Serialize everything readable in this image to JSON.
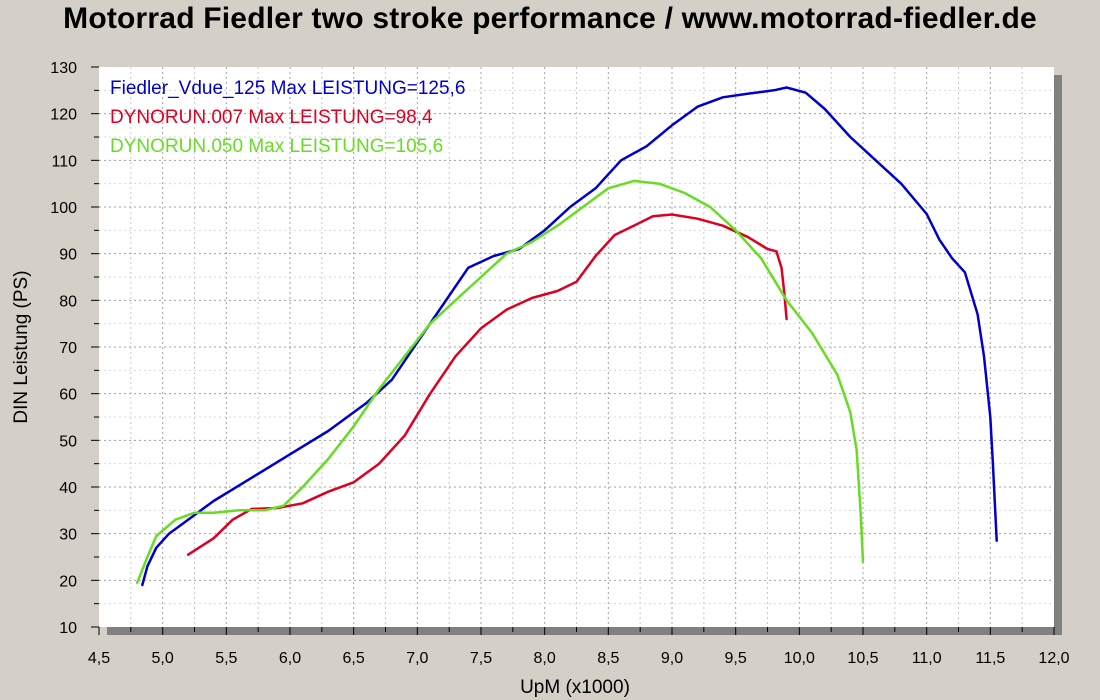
{
  "chart_data": {
    "type": "line",
    "title": "Motorrad Fiedler two stroke performance / www.motorrad-fiedler.de",
    "xlabel": "UpM (x1000)",
    "ylabel": "DIN Leistung (PS)",
    "xlim": [
      4.5,
      12.0
    ],
    "ylim": [
      10,
      130
    ],
    "x_ticks": [
      4.5,
      5.0,
      5.5,
      6.0,
      6.5,
      7.0,
      7.5,
      8.0,
      8.5,
      9.0,
      9.5,
      10.0,
      10.5,
      11.0,
      11.5,
      12.0
    ],
    "x_tick_labels": [
      "4,5",
      "5,0",
      "5,5",
      "6,0",
      "6,5",
      "7,0",
      "7,5",
      "8,0",
      "8,5",
      "9,0",
      "9,5",
      "10,0",
      "10,5",
      "11,0",
      "11,5",
      "12,0"
    ],
    "y_ticks": [
      10,
      20,
      30,
      40,
      50,
      60,
      70,
      80,
      90,
      100,
      110,
      120,
      130
    ],
    "y_tick_labels": [
      "10",
      "20",
      "30",
      "40",
      "50",
      "60",
      "70",
      "80",
      "90",
      "100",
      "110",
      "120",
      "130"
    ],
    "grid": true,
    "legend_placement": "top-left",
    "colors": {
      "background": "#d4d0c8",
      "plot_area": "#ffffff",
      "grid": "#a0a0a0",
      "shadow": "#808080"
    },
    "series": [
      {
        "name": "Fiedler_Vdue_125",
        "legend": "Fiedler_Vdue_125  Max LEISTUNG=125,6",
        "color": "#0000cc",
        "points": [
          [
            4.84,
            19
          ],
          [
            4.88,
            23
          ],
          [
            4.95,
            27
          ],
          [
            5.05,
            30
          ],
          [
            5.2,
            33
          ],
          [
            5.4,
            37
          ],
          [
            5.7,
            42
          ],
          [
            6.0,
            47
          ],
          [
            6.3,
            52
          ],
          [
            6.6,
            58
          ],
          [
            6.8,
            63
          ],
          [
            7.0,
            71
          ],
          [
            7.2,
            79
          ],
          [
            7.4,
            87
          ],
          [
            7.6,
            89.5
          ],
          [
            7.8,
            91
          ],
          [
            8.0,
            95
          ],
          [
            8.2,
            100
          ],
          [
            8.4,
            104
          ],
          [
            8.5,
            107
          ],
          [
            8.6,
            110
          ],
          [
            8.8,
            113
          ],
          [
            9.0,
            117.5
          ],
          [
            9.2,
            121.5
          ],
          [
            9.4,
            123.5
          ],
          [
            9.6,
            124.3
          ],
          [
            9.8,
            125
          ],
          [
            9.9,
            125.6
          ],
          [
            10.05,
            124.5
          ],
          [
            10.2,
            121
          ],
          [
            10.4,
            115
          ],
          [
            10.6,
            110
          ],
          [
            10.8,
            105
          ],
          [
            11.0,
            98.5
          ],
          [
            11.1,
            93
          ],
          [
            11.2,
            89
          ],
          [
            11.3,
            86
          ],
          [
            11.4,
            77
          ],
          [
            11.45,
            68
          ],
          [
            11.5,
            55
          ],
          [
            11.52,
            45
          ],
          [
            11.55,
            28.5
          ]
        ]
      },
      {
        "name": "DYNORUN.007",
        "legend": "DYNORUN.007  Max LEISTUNG=98,4",
        "color": "#dd0022",
        "points": [
          [
            5.2,
            25.5
          ],
          [
            5.4,
            29
          ],
          [
            5.55,
            33
          ],
          [
            5.7,
            35.3
          ],
          [
            5.9,
            35.5
          ],
          [
            6.1,
            36.5
          ],
          [
            6.3,
            39
          ],
          [
            6.5,
            41
          ],
          [
            6.7,
            45
          ],
          [
            6.9,
            51
          ],
          [
            7.1,
            60
          ],
          [
            7.3,
            68
          ],
          [
            7.5,
            74
          ],
          [
            7.7,
            78
          ],
          [
            7.9,
            80.5
          ],
          [
            8.1,
            82
          ],
          [
            8.25,
            84
          ],
          [
            8.4,
            89.5
          ],
          [
            8.55,
            94
          ],
          [
            8.7,
            96
          ],
          [
            8.85,
            98
          ],
          [
            9.0,
            98.4
          ],
          [
            9.2,
            97.5
          ],
          [
            9.4,
            96
          ],
          [
            9.6,
            93.5
          ],
          [
            9.75,
            91
          ],
          [
            9.82,
            90.5
          ],
          [
            9.86,
            87
          ],
          [
            9.88,
            82
          ],
          [
            9.9,
            76
          ]
        ]
      },
      {
        "name": "DYNORUN.050",
        "legend": "DYNORUN.050  Max LEISTUNG=105,6",
        "color": "#66dd22",
        "points": [
          [
            4.8,
            19.5
          ],
          [
            4.88,
            25
          ],
          [
            4.95,
            29.5
          ],
          [
            5.1,
            33
          ],
          [
            5.25,
            34.5
          ],
          [
            5.4,
            34.5
          ],
          [
            5.6,
            35
          ],
          [
            5.8,
            35
          ],
          [
            5.95,
            36
          ],
          [
            6.1,
            40
          ],
          [
            6.3,
            46
          ],
          [
            6.5,
            53
          ],
          [
            6.7,
            61
          ],
          [
            6.9,
            68
          ],
          [
            7.1,
            75
          ],
          [
            7.3,
            80
          ],
          [
            7.5,
            85
          ],
          [
            7.7,
            90
          ],
          [
            7.9,
            92.5
          ],
          [
            8.1,
            96
          ],
          [
            8.3,
            100
          ],
          [
            8.5,
            104
          ],
          [
            8.7,
            105.6
          ],
          [
            8.9,
            105
          ],
          [
            9.1,
            103
          ],
          [
            9.3,
            100
          ],
          [
            9.5,
            95
          ],
          [
            9.7,
            89
          ],
          [
            9.9,
            80
          ],
          [
            10.1,
            73
          ],
          [
            10.3,
            64
          ],
          [
            10.4,
            56
          ],
          [
            10.45,
            48
          ],
          [
            10.48,
            35
          ],
          [
            10.5,
            24
          ]
        ]
      }
    ]
  }
}
